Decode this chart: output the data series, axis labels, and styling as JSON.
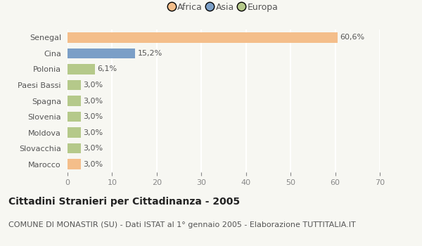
{
  "categories": [
    "Senegal",
    "Cina",
    "Polonia",
    "Paesi Bassi",
    "Spagna",
    "Slovenia",
    "Moldova",
    "Slovacchia",
    "Marocco"
  ],
  "values": [
    60.6,
    15.2,
    6.1,
    3.0,
    3.0,
    3.0,
    3.0,
    3.0,
    3.0
  ],
  "labels": [
    "60,6%",
    "15,2%",
    "6,1%",
    "3,0%",
    "3,0%",
    "3,0%",
    "3,0%",
    "3,0%",
    "3,0%"
  ],
  "colors": [
    "#f4be8a",
    "#7b9fc7",
    "#b5c98a",
    "#b5c98a",
    "#b5c98a",
    "#b5c98a",
    "#b5c98a",
    "#b5c98a",
    "#f4be8a"
  ],
  "legend_labels": [
    "Africa",
    "Asia",
    "Europa"
  ],
  "legend_colors": [
    "#f4be8a",
    "#7b9fc7",
    "#b5c98a"
  ],
  "xlim": [
    0,
    70
  ],
  "xticks": [
    0,
    10,
    20,
    30,
    40,
    50,
    60,
    70
  ],
  "title": "Cittadini Stranieri per Cittadinanza - 2005",
  "subtitle": "COMUNE DI MONASTIR (SU) - Dati ISTAT al 1° gennaio 2005 - Elaborazione TUTTITALIA.IT",
  "bg_color": "#f7f7f2",
  "bar_height": 0.65,
  "title_fontsize": 10,
  "subtitle_fontsize": 8,
  "label_fontsize": 8,
  "tick_fontsize": 8,
  "legend_fontsize": 9,
  "grid_color": "#ffffff",
  "text_color": "#555555",
  "tick_color": "#888888"
}
